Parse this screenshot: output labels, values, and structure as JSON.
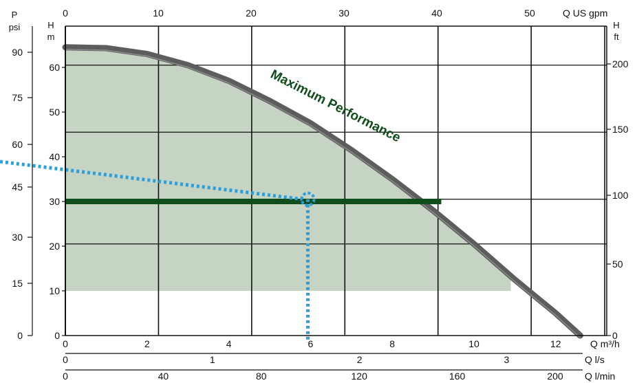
{
  "chart_data": {
    "type": "line",
    "title": "",
    "annotation": "Maximum Performance",
    "x": {
      "label": "Q m³/h",
      "range": [
        0,
        13.5
      ],
      "ticks": [
        0,
        2,
        4,
        6,
        8,
        10,
        12
      ]
    },
    "y": {
      "label_top": "H",
      "label_unit": "m",
      "range": [
        0,
        67
      ],
      "ticks": [
        0,
        10,
        20,
        30,
        40,
        50,
        60
      ]
    },
    "top_axis": {
      "label": "Q US gpm",
      "ticks": [
        0,
        10,
        20,
        30,
        40,
        50
      ]
    },
    "bottom_axis_2": {
      "label": "Q l/s",
      "ticks": [
        0,
        1,
        2,
        3
      ]
    },
    "bottom_axis_3": {
      "label": "Q l/min",
      "ticks": [
        0,
        40,
        80,
        120,
        160,
        200
      ]
    },
    "left_axis_2": {
      "label_top": "P",
      "label_unit": "psi",
      "ticks": [
        0,
        15,
        30,
        45,
        60,
        75,
        90
      ]
    },
    "right_axis": {
      "label_top": "H",
      "label_unit": "ft",
      "ticks": [
        0,
        50,
        100,
        150,
        200
      ]
    },
    "series": [
      {
        "role": "max-performance-curve",
        "color": "#5d5d5d",
        "points": [
          [
            0,
            64.5
          ],
          [
            1,
            64.3
          ],
          [
            2,
            63
          ],
          [
            3,
            60.5
          ],
          [
            4,
            57
          ],
          [
            5,
            52.5
          ],
          [
            6,
            47.5
          ],
          [
            7,
            41.5
          ],
          [
            8,
            35
          ],
          [
            9,
            28
          ],
          [
            10,
            20.5
          ],
          [
            11,
            12.5
          ],
          [
            12,
            5
          ],
          [
            12.6,
            0
          ]
        ]
      },
      {
        "role": "operating-band",
        "color": "#0f4d1c",
        "y": 30,
        "x": [
          0,
          9.2
        ]
      }
    ],
    "operating_area": {
      "color": "#c6d4c3",
      "y_min": 10,
      "x_max": 10.9
    },
    "example_point": {
      "x": 5.8,
      "y": 30.5,
      "color": "#2a9fdd"
    },
    "grid": true
  }
}
